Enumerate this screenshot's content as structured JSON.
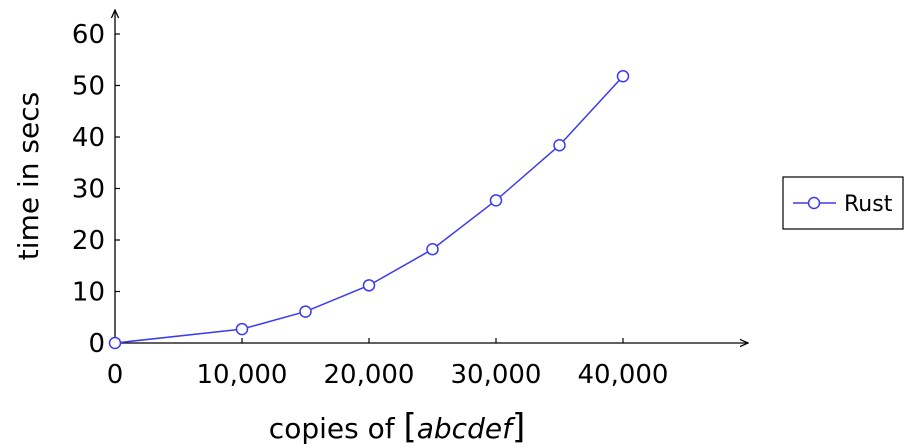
{
  "chart_data": {
    "type": "line",
    "xlabel_prefix": "copies of ",
    "xlabel_italic": "abcdef",
    "ylabel": "time in secs",
    "xlim": [
      0,
      49000
    ],
    "ylim": [
      0,
      65
    ],
    "x_ticks": [
      0,
      10000,
      20000,
      30000,
      40000
    ],
    "x_tick_labels": [
      "0",
      "10,000",
      "20,000",
      "30,000",
      "40,000"
    ],
    "y_ticks": [
      0,
      10,
      20,
      30,
      40,
      50,
      60
    ],
    "y_tick_labels": [
      "0",
      "10",
      "20",
      "30",
      "40",
      "50",
      "60"
    ],
    "legend_position": "right",
    "grid": false,
    "series": [
      {
        "name": "Rust",
        "color": "#3b3bf0",
        "marker": "circle",
        "x": [
          0,
          10000,
          15000,
          20000,
          25000,
          30000,
          35000,
          40000
        ],
        "y": [
          0,
          2.7,
          6.1,
          11.2,
          18.2,
          27.7,
          38.4,
          51.8
        ]
      }
    ]
  }
}
